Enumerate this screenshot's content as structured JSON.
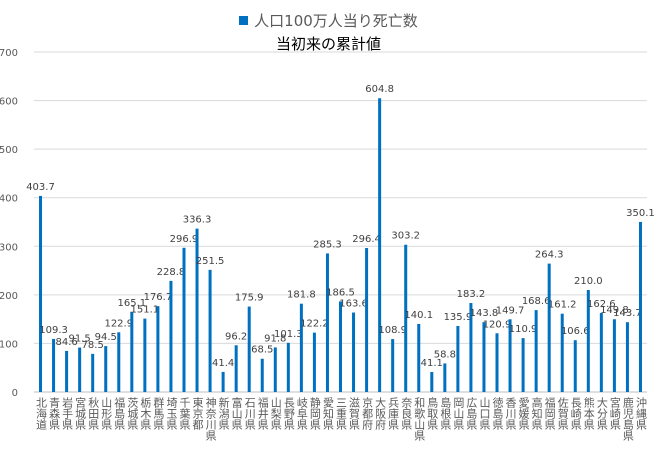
{
  "chart_data": {
    "type": "bar",
    "legend_position": "top",
    "grid": true,
    "ylim": [
      0,
      700
    ],
    "yticks": [
      0,
      100,
      200,
      300,
      400,
      500,
      600,
      700
    ],
    "bar_color": "#0070C0",
    "grid_color": "#d9d9d9",
    "title": "当初来の累計値",
    "categories": [
      "北海道",
      "青森県",
      "岩手県",
      "宮城県",
      "秋田県",
      "山形県",
      "福島県",
      "茨城県",
      "栃木県",
      "群馬県",
      "埼玉県",
      "千葉県",
      "東京都",
      "神奈川県",
      "新潟県",
      "富山県",
      "石川県",
      "福井県",
      "山梨県",
      "長野県",
      "岐阜県",
      "静岡県",
      "愛知県",
      "三重県",
      "滋賀県",
      "京都府",
      "大阪府",
      "兵庫県",
      "奈良県",
      "和歌山県",
      "鳥取県",
      "島根県",
      "岡山県",
      "広島県",
      "山口県",
      "徳島県",
      "香川県",
      "愛媛県",
      "高知県",
      "福岡県",
      "佐賀県",
      "長崎県",
      "熊本県",
      "大分県",
      "宮崎県",
      "鹿児島県",
      "沖縄県"
    ],
    "series": [
      {
        "name": "人口100万人当り死亡数",
        "values": [
          403.7,
          109.3,
          84.6,
          91.5,
          78.5,
          94.5,
          122.9,
          165.1,
          151.1,
          176.7,
          228.8,
          296.9,
          336.3,
          251.5,
          41.4,
          96.2,
          175.9,
          68.5,
          91.8,
          101.3,
          181.8,
          122.2,
          285.3,
          186.5,
          163.6,
          296.4,
          604.8,
          108.9,
          303.2,
          140.1,
          41.1,
          58.8,
          135.9,
          183.2,
          143.8,
          120.9,
          149.7,
          110.9,
          168.6,
          264.3,
          161.2,
          106.6,
          210.0,
          162.6,
          149.8,
          143.7,
          350.1
        ],
        "labels": [
          "403.7",
          "109.3",
          "84.6",
          "91.5",
          "78.5",
          "94.5",
          "122.9",
          "165.1",
          "151.1",
          "176.7",
          "228.8",
          "296.9",
          "336.3",
          "251.5",
          "41.4",
          "96.2",
          "175.9",
          "68.5",
          "91.8",
          "101.3",
          "181.8",
          "122.2",
          "285.3",
          "186.5",
          "163.6",
          "296.4",
          "604.8",
          "108.9",
          "303.2",
          "140.1",
          "41.1",
          "58.8",
          "135.9",
          "183.2",
          "143.8",
          "120.9",
          "149.7",
          "110.9",
          "168.6",
          "264.3",
          "161.2",
          "106.6",
          "210.0",
          "162.6",
          "149.8",
          "143.7",
          "350.1"
        ]
      }
    ]
  }
}
